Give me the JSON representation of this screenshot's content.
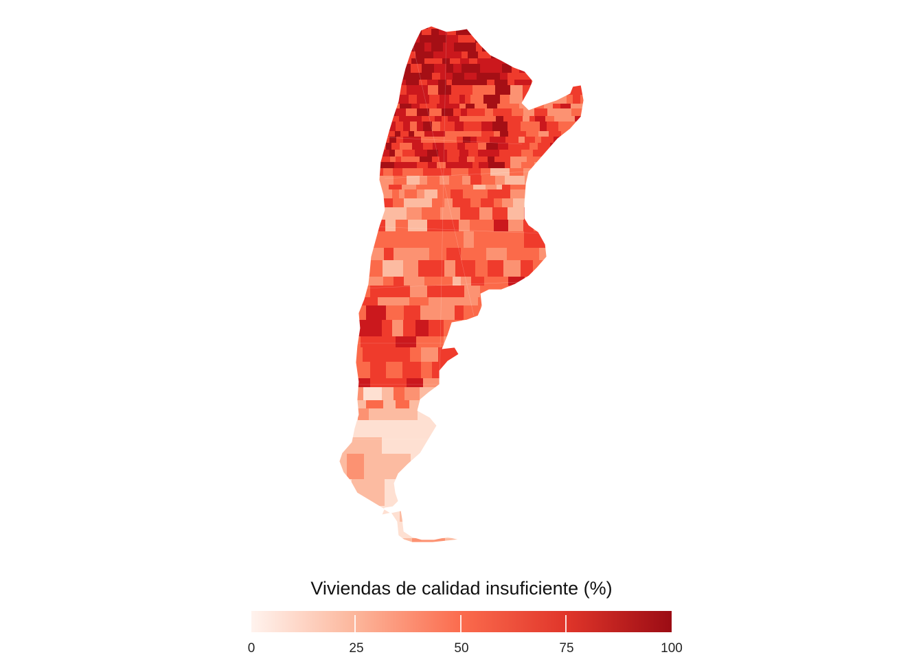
{
  "map": {
    "country": "Argentina",
    "region_unit": "departamento",
    "fill_scale": {
      "variable": "Viviendas de calidad insuficiente (%)",
      "min": 0,
      "max": 100,
      "palette": [
        "#fee0d2",
        "#fcbba1",
        "#fc9272",
        "#fb6a4a",
        "#ef3b2c",
        "#cb181d",
        "#a50f15"
      ]
    },
    "observed_pattern": {
      "north": "very high (70–100)",
      "centre": "moderate (25–60)",
      "pampas_coast": "mixed (15–60)",
      "patagonia_north": "high (40–70)",
      "patagonia_south": "low (0–25)"
    }
  },
  "legend": {
    "title": "Viviendas de calidad insuficiente (%)",
    "ticks": [
      {
        "value": 0,
        "label": "0"
      },
      {
        "value": 25,
        "label": "25"
      },
      {
        "value": 50,
        "label": "50"
      },
      {
        "value": 75,
        "label": "75"
      },
      {
        "value": 100,
        "label": "100"
      }
    ],
    "colors": {
      "low": "#fff0ea",
      "mid": "#fb6a4a",
      "high": "#99000d"
    }
  }
}
